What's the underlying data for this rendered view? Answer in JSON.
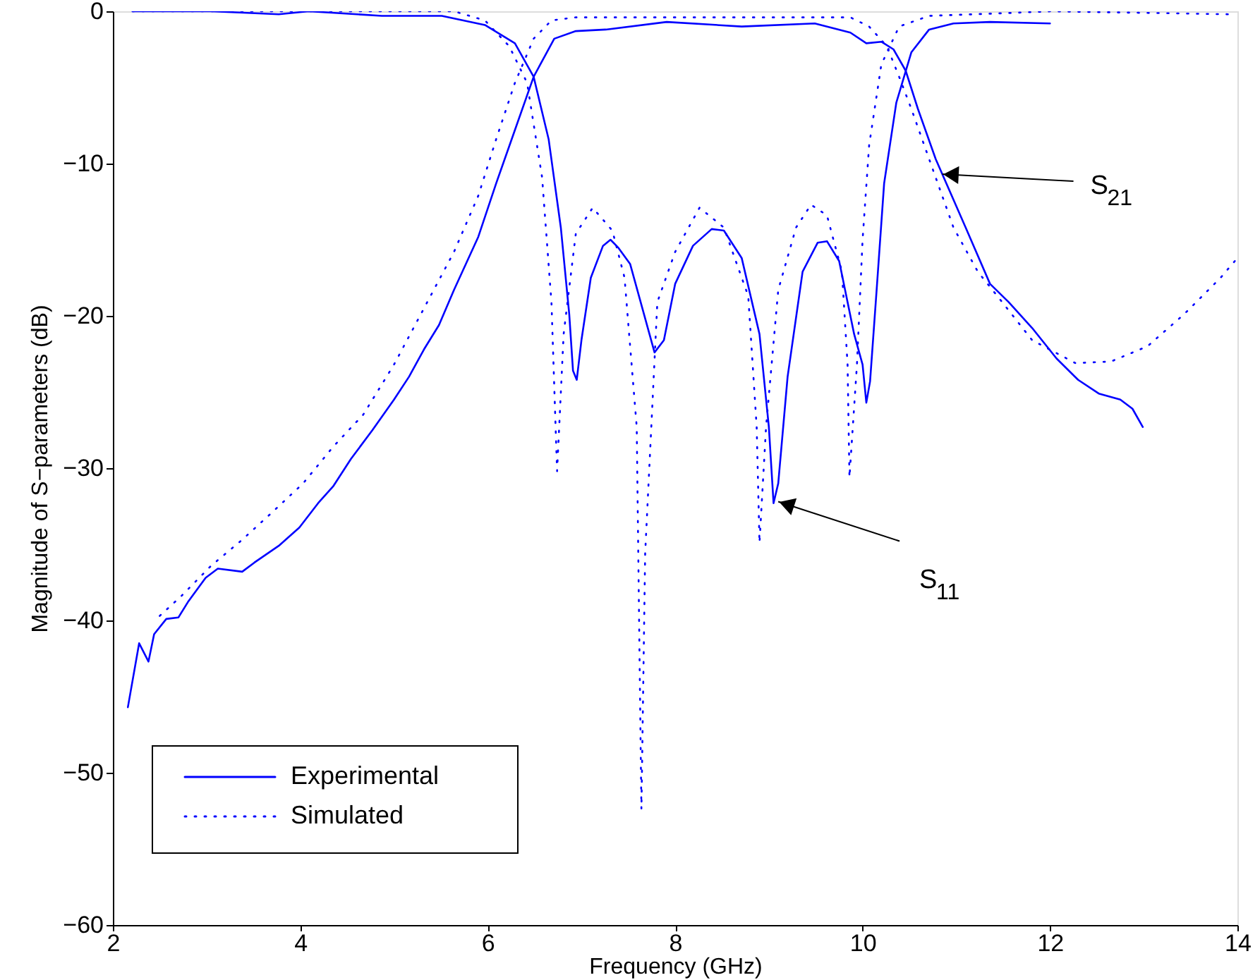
{
  "chart_data": {
    "type": "line",
    "xlabel": "Frequency (GHz)",
    "ylabel": "Magnitude of S−parameters (dB)",
    "xlim": [
      2,
      14
    ],
    "ylim": [
      -60,
      0
    ],
    "xticks": [
      2,
      4,
      6,
      8,
      10,
      12,
      14
    ],
    "yticks": [
      -60,
      -50,
      -40,
      -30,
      -20,
      -10,
      0
    ],
    "legend": "bottom left",
    "annotations": [
      {
        "text": "S$_{21}$",
        "x": 10.85,
        "y": -10.7
      },
      {
        "text": "S$_{11}$",
        "x": 9.1,
        "y": -32.2
      }
    ],
    "series": [
      {
        "name": "Experimental",
        "color": "#0000ff",
        "line_style": "solid",
        "x": [
          2.16,
          2.28,
          2.38,
          2.44,
          2.57,
          2.7,
          2.8,
          2.99,
          3.12,
          3.38,
          3.51,
          3.77,
          3.99,
          4.19,
          4.35,
          4.54,
          4.77,
          5.0,
          5.16,
          5.32,
          5.48,
          5.64,
          5.9,
          6.09,
          6.29,
          6.49,
          6.71,
          6.94,
          7.26,
          7.91,
          8.71,
          9.49,
          9.87,
          10.04,
          10.2,
          10.33,
          10.46,
          10.59,
          10.78,
          11.1,
          11.36,
          11.56,
          11.81,
          12.07,
          12.3,
          12.52,
          12.75,
          12.88,
          12.99
        ],
        "values": [
          -45.7,
          -41.5,
          -42.7,
          -40.9,
          -39.9,
          -39.8,
          -38.8,
          -37.2,
          -36.6,
          -36.8,
          -36.2,
          -35.1,
          -33.9,
          -32.3,
          -31.2,
          -29.4,
          -27.5,
          -25.5,
          -24.0,
          -22.2,
          -20.6,
          -18.3,
          -14.8,
          -11.3,
          -7.8,
          -4.3,
          -1.8,
          -1.3,
          -1.2,
          -0.7,
          -1.0,
          -0.8,
          -1.4,
          -2.1,
          -2.0,
          -2.5,
          -3.9,
          -6.4,
          -9.7,
          -14.2,
          -17.9,
          -19.1,
          -20.8,
          -22.8,
          -24.2,
          -25.1,
          -25.5,
          -26.1,
          -27.3
        ]
      },
      {
        "color": "#0000ff",
        "line_style": "solid",
        "x": [
          2.21,
          3.05,
          3.77,
          4.09,
          4.87,
          5.51,
          5.97,
          6.29,
          6.49,
          6.65,
          6.78,
          6.87,
          6.91,
          6.95,
          7.0,
          7.1,
          7.23,
          7.31,
          7.39,
          7.52,
          7.78,
          7.88,
          8.0,
          8.19,
          8.39,
          8.52,
          8.71,
          8.9,
          9.0,
          9.05,
          9.1,
          9.2,
          9.36,
          9.52,
          9.62,
          9.75,
          9.91,
          10.0,
          10.04,
          10.08,
          10.15,
          10.23,
          10.36,
          10.52,
          10.71,
          10.97,
          11.36,
          12.0
        ],
        "values": [
          0,
          0,
          -0.2,
          0,
          -0.3,
          -0.3,
          -0.9,
          -2.1,
          -4.3,
          -8.4,
          -14.2,
          -19.9,
          -23.6,
          -24.2,
          -21.6,
          -17.5,
          -15.4,
          -15.0,
          -15.5,
          -16.6,
          -22.4,
          -21.6,
          -17.9,
          -15.4,
          -14.3,
          -14.4,
          -16.2,
          -21.2,
          -27.3,
          -32.3,
          -31.0,
          -24.0,
          -17.1,
          -15.2,
          -15.1,
          -16.4,
          -21.2,
          -23.2,
          -25.7,
          -24.3,
          -18.3,
          -11.3,
          -6.0,
          -2.7,
          -1.2,
          -0.8,
          -0.7,
          -0.8
        ]
      },
      {
        "name": "Simulated",
        "color": "#0000ff",
        "line_style": "dotted",
        "x": [
          2.5,
          2.73,
          3.05,
          3.38,
          3.7,
          4.03,
          4.35,
          4.67,
          5.0,
          5.32,
          5.64,
          5.9,
          6.09,
          6.29,
          6.49,
          6.68,
          6.94,
          7.74,
          9.87,
          10.07,
          10.26,
          10.39,
          10.52,
          10.71,
          10.97,
          11.23,
          11.49,
          11.81,
          12.27,
          12.65,
          13.04,
          13.43,
          13.82,
          14.0
        ],
        "values": [
          -39.7,
          -38.4,
          -36.4,
          -34.7,
          -32.9,
          -31.0,
          -28.6,
          -26.5,
          -23.2,
          -19.5,
          -15.8,
          -12.1,
          -8.4,
          -4.7,
          -1.8,
          -0.6,
          -0.4,
          -0.4,
          -0.4,
          -1.0,
          -2.3,
          -4.3,
          -6.4,
          -9.7,
          -14.2,
          -17.1,
          -19.1,
          -21.6,
          -23.1,
          -23.0,
          -22.0,
          -19.9,
          -17.5,
          -16.2
        ]
      },
      {
        "color": "#0000ff",
        "line_style": "dotted",
        "x": [
          2.21,
          5.64,
          5.97,
          6.23,
          6.42,
          6.58,
          6.68,
          6.74,
          6.81,
          6.94,
          7.12,
          7.33,
          7.46,
          7.59,
          7.64,
          7.68,
          7.81,
          8.0,
          8.26,
          8.52,
          8.78,
          8.87,
          8.9,
          8.97,
          9.1,
          9.29,
          9.45,
          9.62,
          9.78,
          9.84,
          9.86,
          9.94,
          10.0,
          10.07,
          10.2,
          10.39,
          10.71,
          11.62,
          12.0,
          13.95
        ],
        "values": [
          0,
          0,
          -0.6,
          -2.3,
          -4.7,
          -10.9,
          -19.1,
          -30.2,
          -21.2,
          -14.6,
          -12.9,
          -14.4,
          -17.5,
          -27.3,
          -52.4,
          -35.6,
          -19.1,
          -15.8,
          -12.9,
          -14.2,
          -18.7,
          -27.3,
          -34.9,
          -27.3,
          -18.3,
          -14.2,
          -12.7,
          -13.4,
          -17.1,
          -23.2,
          -30.6,
          -23.2,
          -15.0,
          -8.8,
          -3.5,
          -1.0,
          -0.3,
          -0.1,
          0,
          -0.2
        ]
      }
    ]
  }
}
